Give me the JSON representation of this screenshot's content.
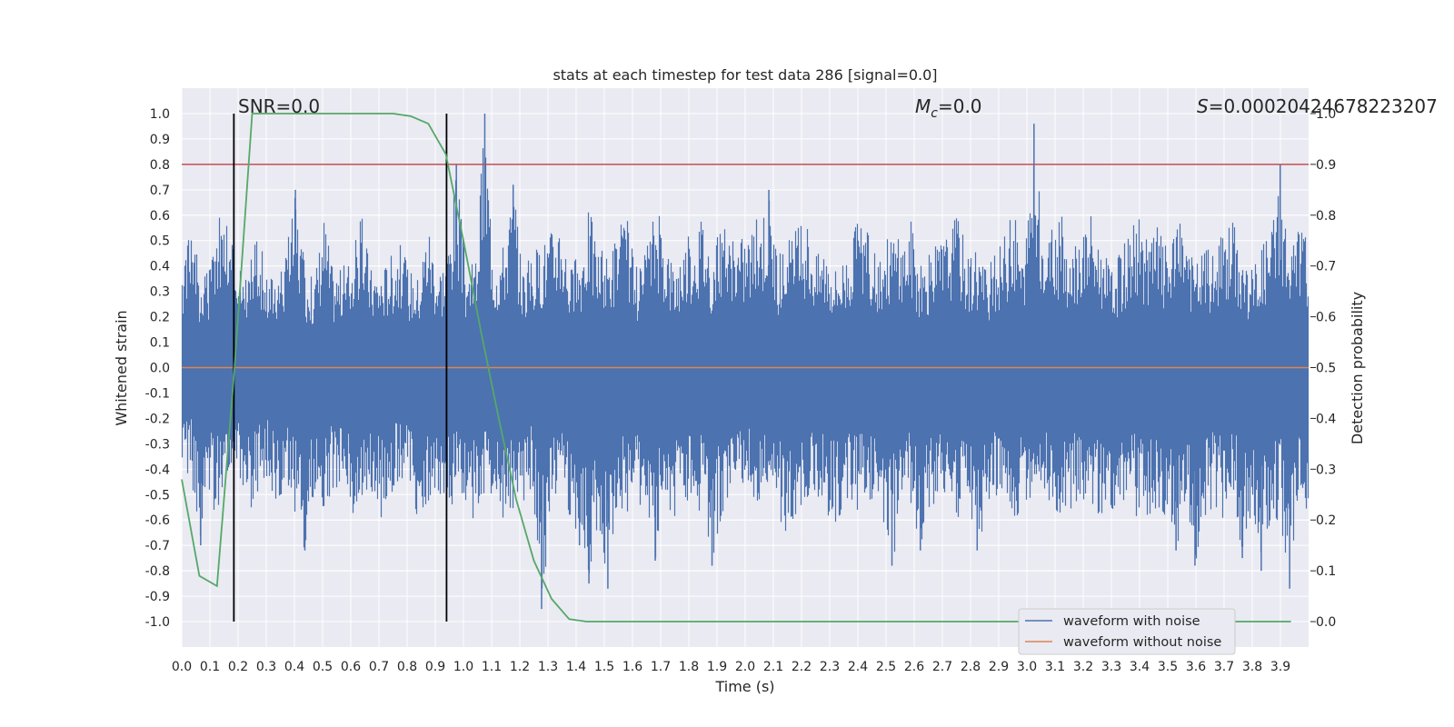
{
  "chart_data": {
    "type": "line",
    "title": "stats at each timestep for test data 286 [signal=0.0]",
    "xlabel": "Time (s)",
    "ylabel": "Whitened strain",
    "y2label": "Detection probability",
    "xlim": [
      0.0,
      4.0
    ],
    "ylim": [
      -1.1,
      1.1
    ],
    "y2lim": [
      -0.05,
      1.05
    ],
    "grid": true,
    "legend_position": "lower-right",
    "x_ticks": [
      "0.0",
      "0.1",
      "0.2",
      "0.3",
      "0.4",
      "0.5",
      "0.6",
      "0.7",
      "0.8",
      "0.9",
      "1.0",
      "1.1",
      "1.2",
      "1.3",
      "1.4",
      "1.5",
      "1.6",
      "1.7",
      "1.8",
      "1.9",
      "2.0",
      "2.1",
      "2.2",
      "2.3",
      "2.4",
      "2.5",
      "2.6",
      "2.7",
      "2.8",
      "2.9",
      "3.0",
      "3.1",
      "3.2",
      "3.3",
      "3.4",
      "3.5",
      "3.6",
      "3.7",
      "3.8",
      "3.9"
    ],
    "y_ticks": [
      "1.0",
      "0.9",
      "0.8",
      "0.7",
      "0.6",
      "0.5",
      "0.4",
      "0.3",
      "0.2",
      "0.1",
      "0.0",
      "-0.1",
      "-0.2",
      "-0.3",
      "-0.4",
      "-0.5",
      "-0.6",
      "-0.7",
      "-0.8",
      "-0.9",
      "-1.0"
    ],
    "y2_ticks": [
      "1.0",
      "0.9",
      "0.8",
      "0.7",
      "0.6",
      "0.5",
      "0.4",
      "0.3",
      "0.2",
      "0.1",
      "0.0"
    ],
    "annotations": {
      "snr": "SNR=0.0",
      "mc_symbol": "M",
      "mc_sub": "c",
      "mc_value": "=0.0",
      "s_symbol": "S",
      "s_value": "=0.00020424678223207"
    },
    "threshold": {
      "y2": 0.9,
      "color": "#c44e52"
    },
    "vlines": [
      0.185,
      0.94
    ],
    "series": [
      {
        "name": "waveform with noise",
        "color": "#4c72b0",
        "axis": "left",
        "envelope_upper": [
          0.4,
          0.65,
          0.35,
          0.4,
          0.6,
          0.55,
          0.4,
          0.35,
          0.6,
          0.35,
          0.4,
          0.45,
          0.7,
          0.4,
          0.35,
          0.62,
          0.38,
          0.4,
          0.45,
          0.6,
          0.4,
          0.38,
          0.45,
          0.5,
          0.4,
          0.36,
          0.6,
          0.4,
          0.45,
          0.8,
          0.4,
          0.42,
          1.0,
          0.45,
          0.5,
          0.72,
          0.4,
          0.45,
          0.5,
          0.55,
          0.62,
          0.4,
          0.45,
          0.65,
          0.48,
          0.45,
          0.55,
          0.6,
          0.4,
          0.45,
          0.65,
          0.55,
          0.4,
          0.5,
          0.55,
          0.62,
          0.45,
          0.58,
          0.5,
          0.52,
          0.55,
          0.6,
          0.7,
          0.45,
          0.5,
          0.55,
          0.6,
          0.45,
          0.5,
          0.4,
          0.45,
          0.55,
          0.6,
          0.45,
          0.5,
          0.55,
          0.5,
          0.6,
          0.4,
          0.45,
          0.5,
          0.55,
          0.62,
          0.45,
          0.5,
          0.4,
          0.45,
          0.55,
          0.62,
          0.4,
          0.96,
          0.5,
          0.55,
          0.6,
          0.45,
          0.55,
          0.62,
          0.5,
          0.4,
          0.45,
          0.55,
          0.62,
          0.5,
          0.58,
          0.48,
          0.55,
          0.6,
          0.4,
          0.5,
          0.45,
          0.55,
          0.6,
          0.45,
          0.4,
          0.5,
          0.55,
          0.8,
          0.45,
          0.6,
          0.5
        ],
        "envelope_lower": [
          -0.4,
          -0.45,
          -0.7,
          -0.55,
          -0.6,
          -0.4,
          -0.45,
          -0.6,
          -0.5,
          -0.45,
          -0.55,
          -0.5,
          -0.6,
          -0.72,
          -0.5,
          -0.55,
          -0.5,
          -0.45,
          -0.6,
          -0.5,
          -0.55,
          -0.6,
          -0.5,
          -0.45,
          -0.5,
          -0.6,
          -0.55,
          -0.5,
          -0.6,
          -0.5,
          -0.62,
          -0.6,
          -0.55,
          -0.5,
          -0.65,
          -0.6,
          -0.55,
          -0.5,
          -0.95,
          -0.6,
          -0.55,
          -0.6,
          -0.7,
          -0.85,
          -0.6,
          -0.87,
          -0.55,
          -0.6,
          -0.5,
          -0.6,
          -0.76,
          -0.55,
          -0.6,
          -0.5,
          -0.6,
          -0.55,
          -0.78,
          -0.6,
          -0.5,
          -0.55,
          -0.5,
          -0.6,
          -0.55,
          -0.6,
          -0.68,
          -0.6,
          -0.55,
          -0.5,
          -0.6,
          -0.62,
          -0.55,
          -0.6,
          -0.5,
          -0.55,
          -0.6,
          -0.78,
          -0.6,
          -0.55,
          -0.72,
          -0.6,
          -0.55,
          -0.5,
          -0.6,
          -0.55,
          -0.72,
          -0.6,
          -0.55,
          -0.5,
          -0.6,
          -0.58,
          -0.5,
          -0.55,
          -0.6,
          -0.62,
          -0.55,
          -0.5,
          -0.6,
          -0.62,
          -0.55,
          -0.6,
          -0.5,
          -0.62,
          -0.6,
          -0.55,
          -0.6,
          -0.72,
          -0.6,
          -0.78,
          -0.6,
          -0.55,
          -0.6,
          -0.5,
          -0.75,
          -0.6,
          -0.8,
          -0.6,
          -0.6,
          -0.87,
          -0.6,
          -0.55
        ]
      },
      {
        "name": "waveform without noise",
        "color": "#dd8452",
        "axis": "left",
        "x": [
          0.0,
          4.0
        ],
        "y": [
          0.0,
          0.0
        ]
      },
      {
        "name": "detection probability",
        "color": "#55a868",
        "axis": "right",
        "x": [
          0.0,
          0.0625,
          0.125,
          0.1875,
          0.25,
          0.3125,
          0.375,
          0.4375,
          0.5,
          0.5625,
          0.625,
          0.6875,
          0.75,
          0.8125,
          0.875,
          0.9375,
          1.0,
          1.0625,
          1.125,
          1.1875,
          1.25,
          1.3125,
          1.375,
          1.4375,
          1.5,
          1.5625,
          1.625,
          1.6875,
          1.75,
          1.8125,
          1.875,
          1.9375,
          2.0,
          2.0625,
          2.125,
          2.1875,
          2.25,
          2.3125,
          2.375,
          2.4375,
          2.5,
          2.5625,
          2.625,
          2.6875,
          2.75,
          2.8125,
          2.875,
          2.9375,
          3.0,
          3.0625,
          3.125,
          3.1875,
          3.25,
          3.3125,
          3.375,
          3.4375,
          3.5,
          3.5625,
          3.625,
          3.6875,
          3.75,
          3.8125,
          3.875,
          3.9375
        ],
        "y": [
          0.28,
          0.09,
          0.07,
          0.5,
          1.0,
          1.0,
          1.0,
          1.0,
          1.0,
          1.0,
          1.0,
          1.0,
          1.0,
          0.995,
          0.98,
          0.92,
          0.75,
          0.57,
          0.4,
          0.24,
          0.12,
          0.045,
          0.005,
          0.0,
          0.0,
          0.0,
          0.0,
          0.0,
          0.0,
          0.0,
          0.0,
          0.0,
          0.0,
          0.0,
          0.0,
          0.0,
          0.0,
          0.0,
          0.0,
          0.0,
          0.0,
          0.0,
          0.0,
          0.0,
          0.0,
          0.0,
          0.0,
          0.0,
          0.0,
          0.0,
          0.0,
          0.0,
          0.0,
          0.0,
          0.0,
          0.0,
          0.0,
          0.0,
          0.0,
          0.0,
          0.0,
          0.0,
          0.0,
          0.0
        ]
      }
    ]
  }
}
